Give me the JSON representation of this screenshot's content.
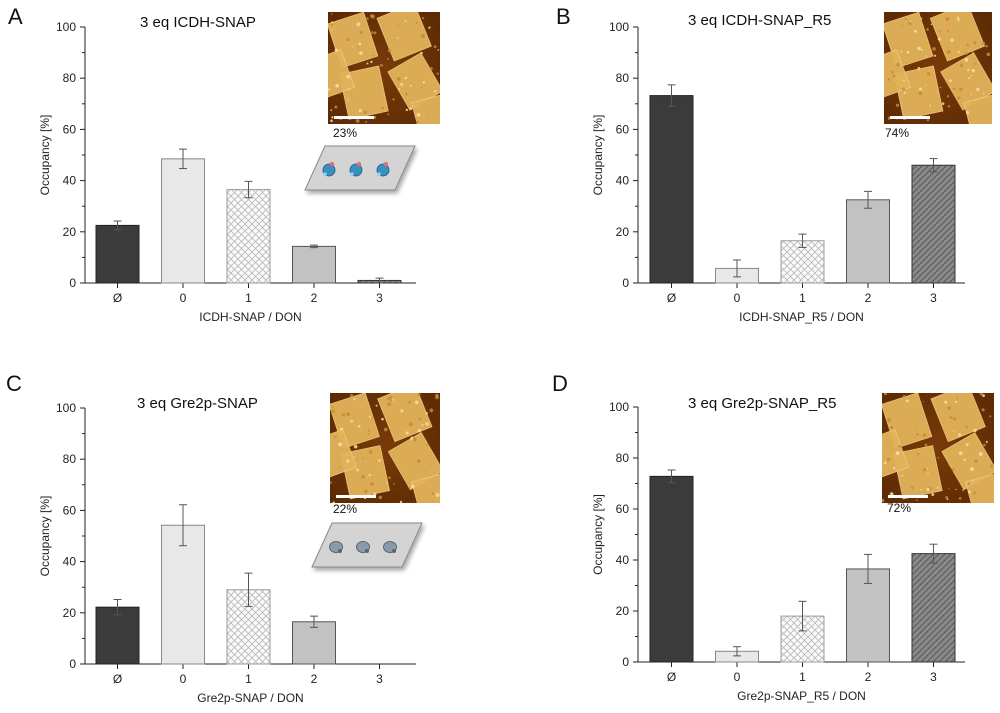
{
  "colors": {
    "empty": "#3b3b3b",
    "zero": "#e8e8e8",
    "one_fill": "#f6f6f6",
    "two": "#c2c2c2",
    "three": "#8a8a8a",
    "afm_dark": "#5a2a04",
    "afm_light": "#e2b35a"
  },
  "chart_data": [
    {
      "panel": "A",
      "type": "bar",
      "title": "3 eq ICDH-SNAP",
      "xlabel": "ICDH-SNAP / DON",
      "ylabel": "Occupancy [%]",
      "ylim": [
        0,
        100
      ],
      "yticks": [
        "0",
        "20",
        "40",
        "60",
        "80",
        "100"
      ],
      "categories": [
        "Ø",
        "0",
        "1",
        "2",
        "3"
      ],
      "values": [
        22.5,
        48.5,
        36.5,
        14.3,
        1.0
      ],
      "errors": [
        1.7,
        3.8,
        3.2,
        0.5,
        0.9
      ],
      "afm_caption": "23%",
      "afm_scalebar": true,
      "schematic": "icdh"
    },
    {
      "panel": "B",
      "type": "bar",
      "title": "3 eq ICDH-SNAP_R5",
      "xlabel": "ICDH-SNAP_R5 / DON",
      "ylabel": "Occupancy [%]",
      "ylim": [
        0,
        100
      ],
      "yticks": [
        "0",
        "20",
        "40",
        "60",
        "80",
        "100"
      ],
      "categories": [
        "Ø",
        "0",
        "1",
        "2",
        "3"
      ],
      "values": [
        73.2,
        5.7,
        16.5,
        32.5,
        46.0
      ],
      "errors": [
        4.2,
        3.3,
        2.6,
        3.3,
        2.6
      ],
      "afm_caption": "74%",
      "afm_scalebar": true,
      "schematic": ""
    },
    {
      "panel": "C",
      "type": "bar",
      "title": "3 eq Gre2p-SNAP",
      "xlabel": "Gre2p-SNAP / DON",
      "ylabel": "Occupancy [%]",
      "ylim": [
        0,
        100
      ],
      "yticks": [
        "0",
        "20",
        "40",
        "60",
        "80",
        "100"
      ],
      "categories": [
        "Ø",
        "0",
        "1",
        "2",
        "3"
      ],
      "values": [
        22.2,
        54.2,
        29.0,
        16.5,
        0
      ],
      "errors": [
        3.0,
        8.0,
        6.5,
        2.2,
        0
      ],
      "afm_caption": "22%",
      "afm_scalebar": true,
      "schematic": "gre2p"
    },
    {
      "panel": "D",
      "type": "bar",
      "title": "3 eq Gre2p-SNAP_R5",
      "xlabel": "Gre2p-SNAP_R5 / DON",
      "ylabel": "Occupancy [%]",
      "ylim": [
        0,
        100
      ],
      "yticks": [
        "0",
        "20",
        "40",
        "60",
        "80",
        "100"
      ],
      "categories": [
        "Ø",
        "0",
        "1",
        "2",
        "3"
      ],
      "values": [
        72.8,
        4.2,
        18.0,
        36.5,
        42.5
      ],
      "errors": [
        2.5,
        1.8,
        5.8,
        5.7,
        3.7
      ],
      "afm_caption": "72%",
      "afm_scalebar": true,
      "schematic": ""
    }
  ]
}
